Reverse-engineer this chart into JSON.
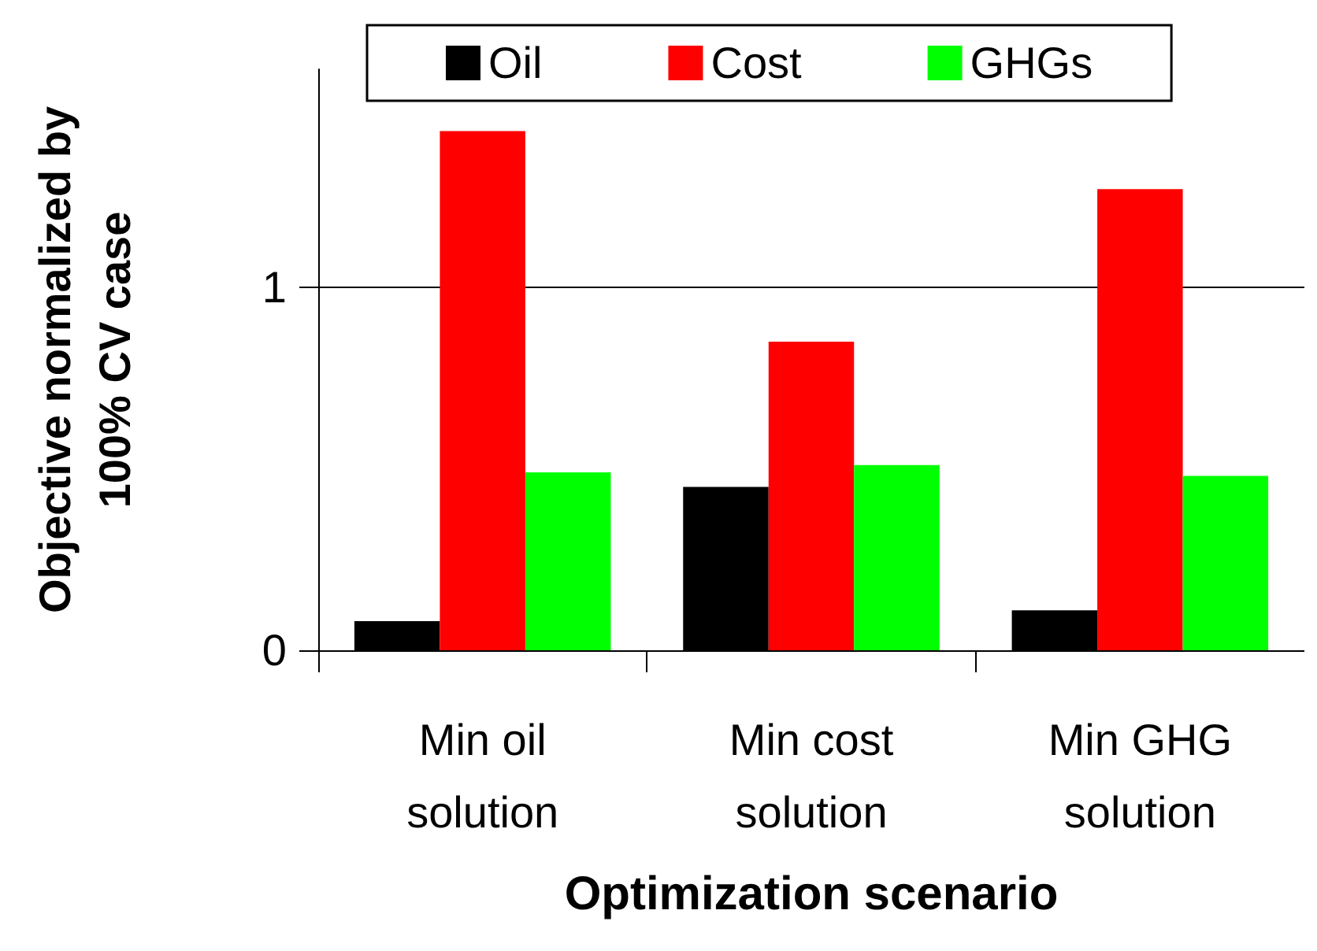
{
  "chart_data": {
    "type": "bar",
    "xlabel": "Optimization scenario",
    "ylabel": "Objective normalized by\n100% CV case",
    "categories": [
      "Min oil\nsolution",
      "Min cost\nsolution",
      "Min GHG\nsolution"
    ],
    "series": [
      {
        "name": "Oil",
        "color": "#000000",
        "values": [
          0.08,
          0.45,
          0.11
        ]
      },
      {
        "name": "Cost",
        "color": "#ff0000",
        "values": [
          1.43,
          0.85,
          1.27
        ]
      },
      {
        "name": "GHGs",
        "color": "#00ff00",
        "values": [
          0.49,
          0.51,
          0.48
        ]
      }
    ],
    "ylim": [
      0,
      1.6
    ],
    "yticks": [
      0,
      1
    ],
    "grid": "y",
    "legend": "top"
  }
}
